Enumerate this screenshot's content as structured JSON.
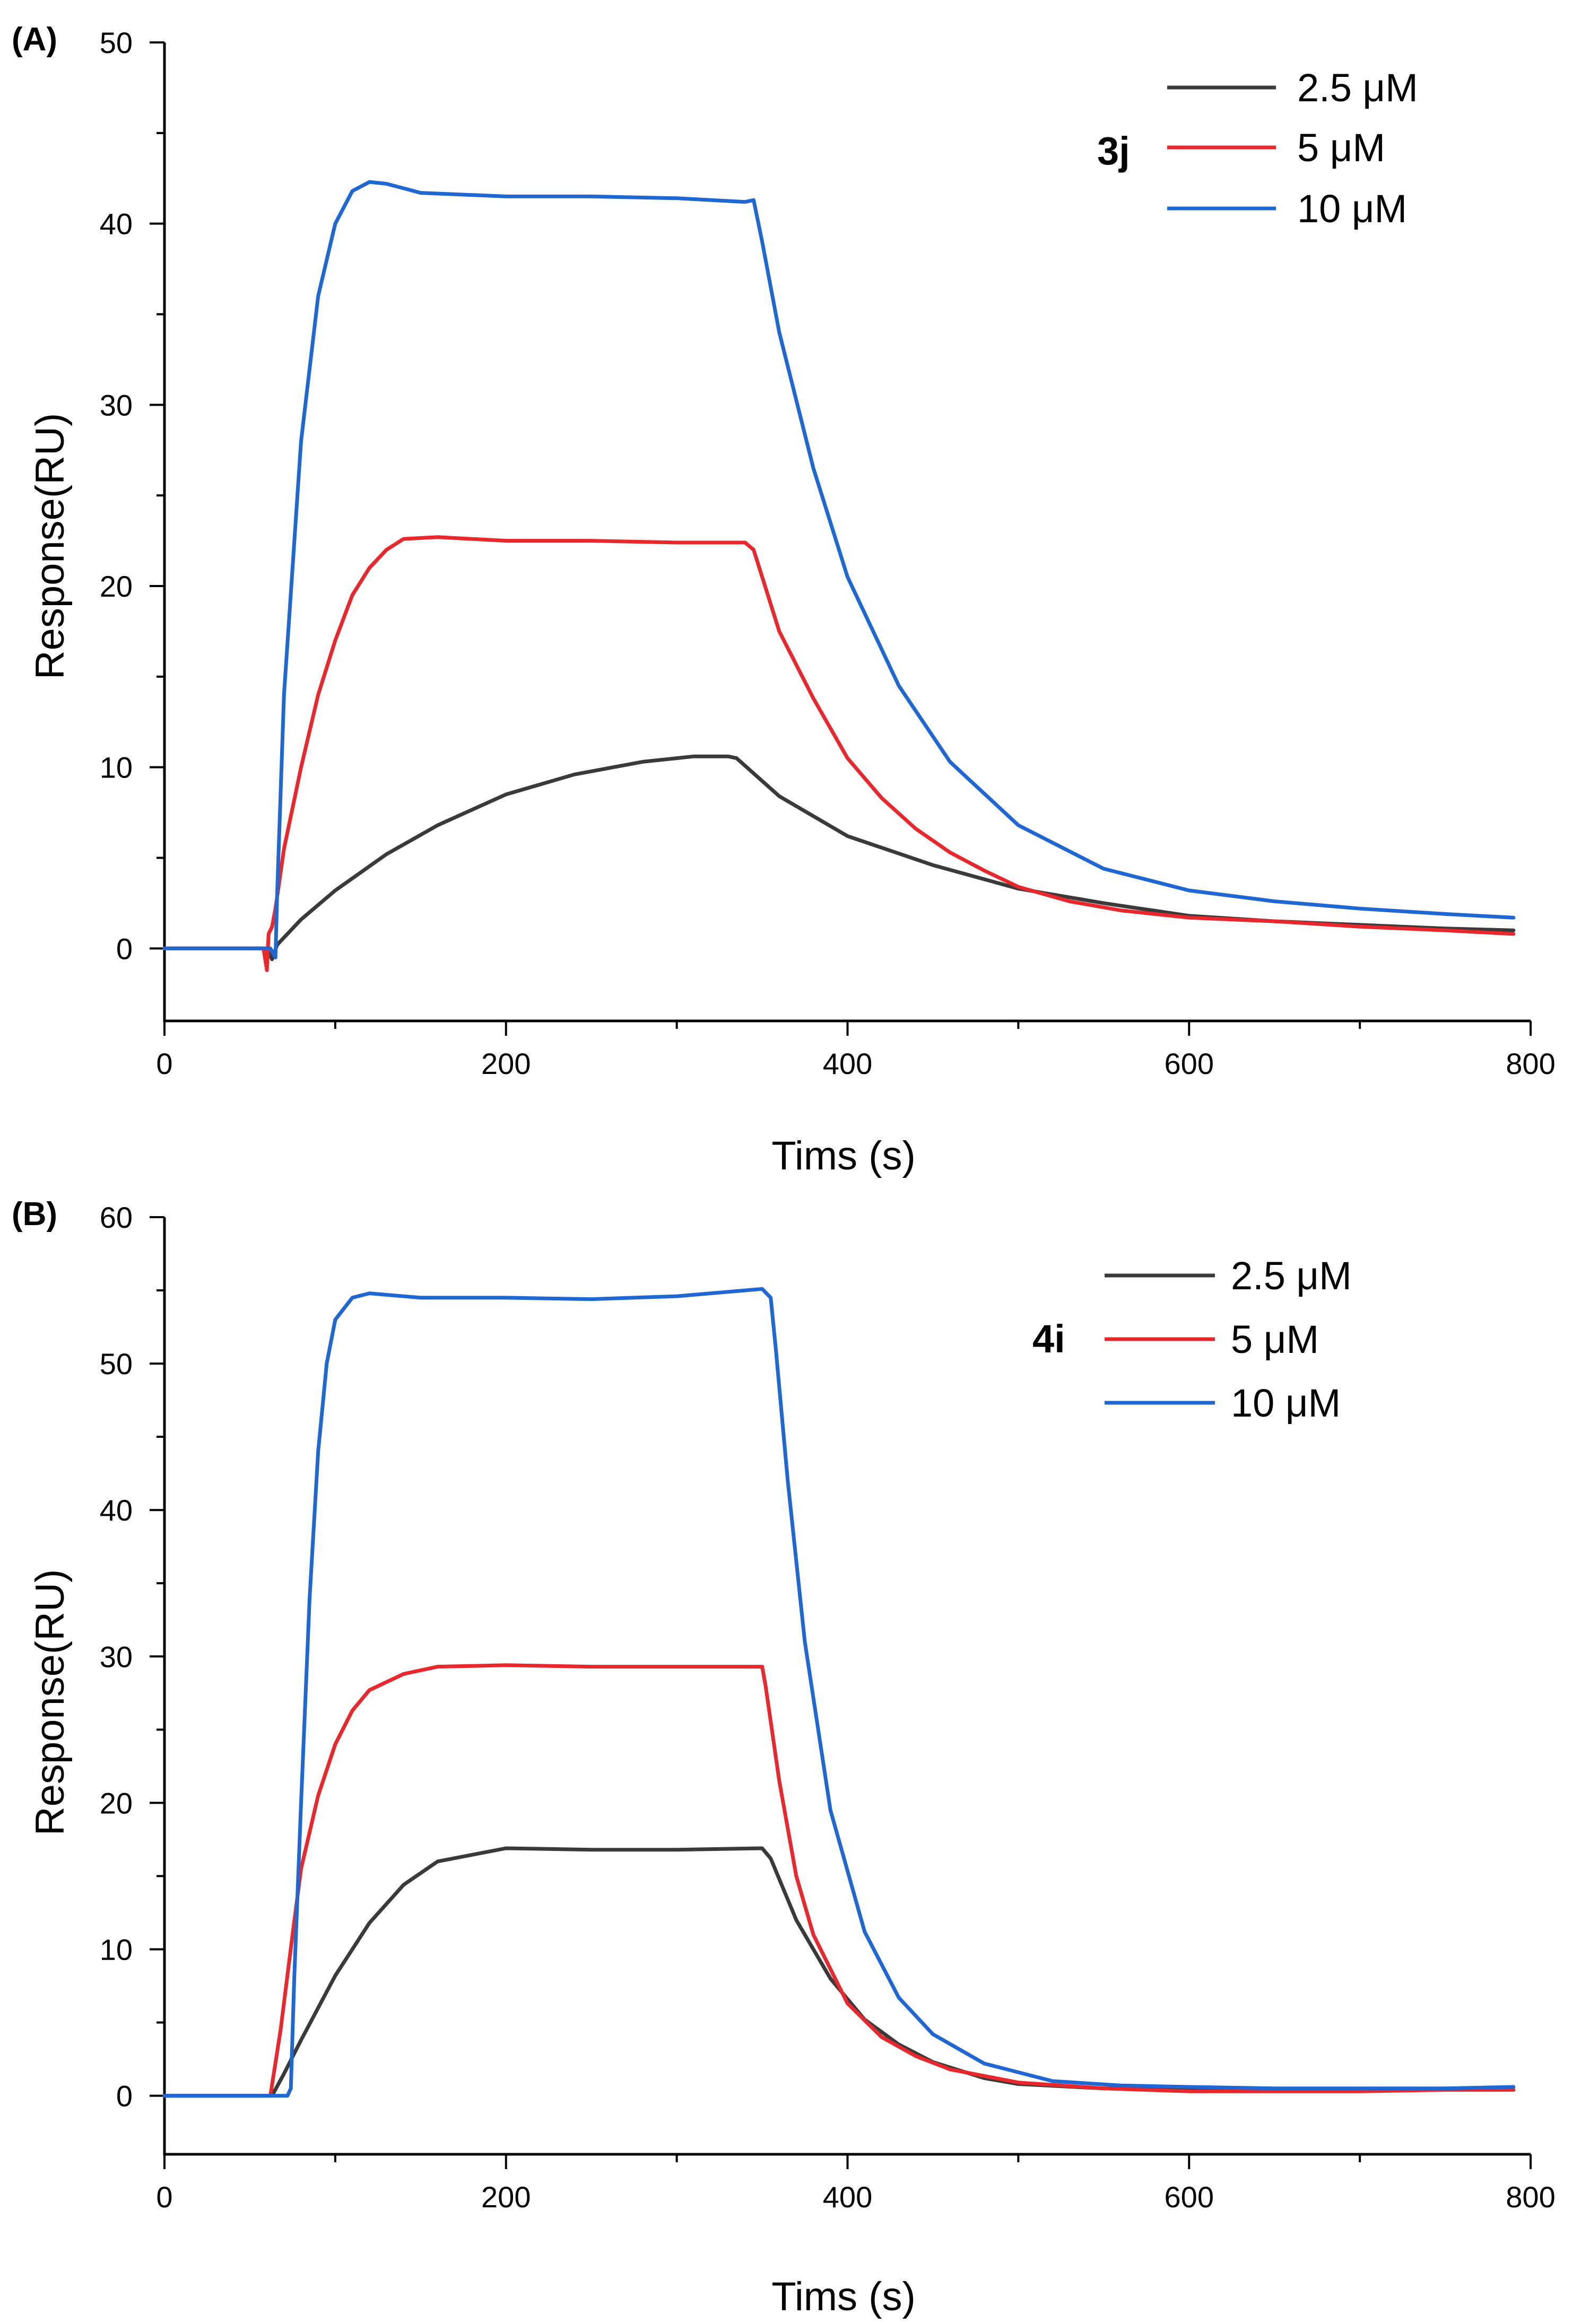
{
  "chart_data": [
    {
      "type": "line",
      "panel_label": "(A)",
      "xlabel": "Tims (s)",
      "ylabel": "Response(RU)",
      "xlim": [
        0,
        800
      ],
      "ylim": [
        -4,
        50
      ],
      "xticks": [
        0,
        200,
        400,
        600,
        800
      ],
      "yticks": [
        0,
        10,
        20,
        30,
        40,
        50
      ],
      "grid": false,
      "legend_placement": "top-right",
      "legend_group_label": "3j",
      "series": [
        {
          "name": "2.5 μM",
          "color": "#3a3a3a",
          "x": [
            0,
            30,
            60,
            63,
            66,
            80,
            100,
            130,
            160,
            200,
            240,
            280,
            310,
            330,
            335,
            360,
            400,
            450,
            500,
            550,
            600,
            650,
            700,
            750,
            790
          ],
          "y": [
            0,
            0,
            0,
            -0.6,
            0.2,
            1.6,
            3.2,
            5.2,
            6.8,
            8.5,
            9.6,
            10.3,
            10.6,
            10.6,
            10.5,
            8.4,
            6.2,
            4.6,
            3.3,
            2.5,
            1.8,
            1.5,
            1.3,
            1.1,
            1.0
          ]
        },
        {
          "name": "5 μM",
          "color": "#e8282d",
          "x": [
            0,
            30,
            58,
            60,
            61,
            63,
            65,
            70,
            80,
            90,
            100,
            110,
            120,
            130,
            140,
            160,
            200,
            250,
            300,
            340,
            345,
            360,
            380,
            400,
            420,
            440,
            460,
            480,
            500,
            530,
            560,
            600,
            650,
            700,
            750,
            790
          ],
          "y": [
            0,
            0,
            0,
            -1.2,
            0.8,
            1.2,
            2.2,
            5.5,
            10.0,
            14.0,
            17.0,
            19.5,
            21.0,
            22.0,
            22.6,
            22.7,
            22.5,
            22.5,
            22.4,
            22.4,
            22.0,
            17.5,
            13.8,
            10.5,
            8.3,
            6.6,
            5.3,
            4.3,
            3.4,
            2.6,
            2.1,
            1.7,
            1.5,
            1.2,
            1.0,
            0.8
          ]
        },
        {
          "name": "10 μM",
          "color": "#1f67d2",
          "x": [
            0,
            30,
            62,
            65,
            66,
            70,
            80,
            90,
            100,
            110,
            120,
            130,
            150,
            200,
            250,
            300,
            340,
            345,
            350,
            360,
            380,
            400,
            430,
            460,
            500,
            550,
            600,
            650,
            700,
            750,
            790
          ],
          "y": [
            0,
            0,
            0,
            -0.5,
            3.0,
            14.0,
            28.0,
            36.0,
            40.0,
            41.8,
            42.3,
            42.2,
            41.7,
            41.5,
            41.5,
            41.4,
            41.2,
            41.3,
            39.0,
            34.0,
            26.5,
            20.5,
            14.5,
            10.3,
            6.8,
            4.4,
            3.2,
            2.6,
            2.2,
            1.9,
            1.7
          ]
        }
      ]
    },
    {
      "type": "line",
      "panel_label": "(B)",
      "xlabel": "Tims (s)",
      "ylabel": "Response(RU)",
      "xlim": [
        0,
        800
      ],
      "ylim": [
        -4,
        60
      ],
      "xticks": [
        0,
        200,
        400,
        600,
        800
      ],
      "yticks": [
        0,
        10,
        20,
        30,
        40,
        50,
        60
      ],
      "grid": false,
      "legend_placement": "top-right",
      "legend_group_label": "4i",
      "series": [
        {
          "name": "2.5 μM",
          "color": "#3a3a3a",
          "x": [
            0,
            30,
            63,
            70,
            80,
            90,
            100,
            120,
            140,
            160,
            200,
            250,
            300,
            350,
            355,
            370,
            390,
            410,
            430,
            450,
            480,
            500,
            550,
            600,
            650,
            700,
            750,
            790
          ],
          "y": [
            0,
            0,
            0,
            1.5,
            3.8,
            6.0,
            8.2,
            11.8,
            14.4,
            16.0,
            16.9,
            16.8,
            16.8,
            16.9,
            16.2,
            12.0,
            8.0,
            5.2,
            3.5,
            2.3,
            1.2,
            0.8,
            0.5,
            0.5,
            0.4,
            0.4,
            0.4,
            0.4
          ]
        },
        {
          "name": "5 μM",
          "color": "#e8282d",
          "x": [
            0,
            30,
            62,
            68,
            75,
            80,
            90,
            100,
            110,
            120,
            140,
            160,
            200,
            250,
            300,
            350,
            352,
            360,
            370,
            380,
            400,
            420,
            440,
            460,
            500,
            550,
            600,
            650,
            700,
            750,
            790
          ],
          "y": [
            0,
            0,
            0,
            4.5,
            11.0,
            15.5,
            20.5,
            24.0,
            26.3,
            27.7,
            28.8,
            29.3,
            29.4,
            29.3,
            29.3,
            29.3,
            28.0,
            21.5,
            15.0,
            11.0,
            6.3,
            4.0,
            2.7,
            1.8,
            0.9,
            0.5,
            0.3,
            0.3,
            0.3,
            0.4,
            0.4
          ]
        },
        {
          "name": "10 μM",
          "color": "#1f67d2",
          "x": [
            0,
            30,
            72,
            74,
            76,
            80,
            85,
            90,
            95,
            100,
            110,
            120,
            150,
            200,
            250,
            300,
            350,
            355,
            358,
            365,
            375,
            390,
            410,
            430,
            450,
            480,
            520,
            560,
            600,
            650,
            700,
            750,
            790
          ],
          "y": [
            0,
            0,
            0,
            0.5,
            8.0,
            20.0,
            34.0,
            44.0,
            50.0,
            53.0,
            54.5,
            54.8,
            54.5,
            54.5,
            54.4,
            54.6,
            55.1,
            54.5,
            51.0,
            42.0,
            31.0,
            19.5,
            11.2,
            6.7,
            4.2,
            2.2,
            1.0,
            0.7,
            0.6,
            0.5,
            0.5,
            0.5,
            0.6
          ]
        }
      ]
    }
  ]
}
